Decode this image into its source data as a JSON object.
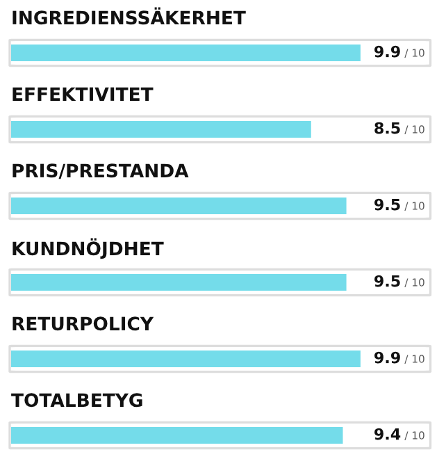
{
  "chart_data": {
    "type": "bar",
    "orientation": "horizontal",
    "categories": [
      "INGREDIENSSÄKERHET",
      "EFFEKTIVITET",
      "PRIS/PRESTANDA",
      "KUNDNÖJDHET",
      "RETURPOLICY",
      "TOTALBETYG"
    ],
    "values": [
      9.9,
      8.5,
      9.5,
      9.5,
      9.9,
      9.4
    ],
    "data_labels": true,
    "annotations": [
      "/ 10",
      "/ 10",
      "/ 10",
      "/ 10",
      "/ 10",
      "/ 10"
    ],
    "color": "#74dcea",
    "xlim": [
      0,
      10
    ],
    "tick_labels": false
  }
}
